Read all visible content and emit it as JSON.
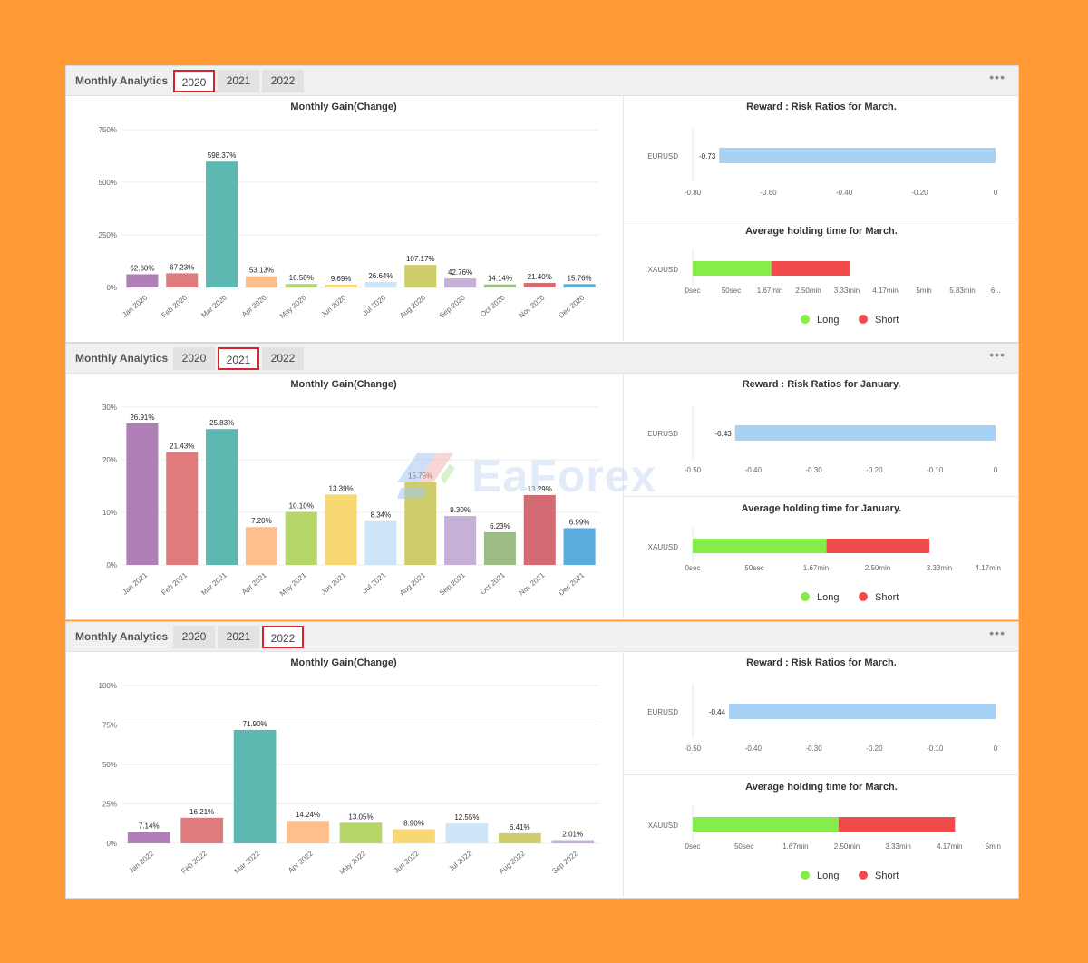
{
  "panels": [
    {
      "title": "Monthly Analytics",
      "tabs": [
        "2020",
        "2021",
        "2022"
      ],
      "active_tab": 0,
      "menu_icon": "more-dots-icon",
      "gain_chart": {
        "type": "bar",
        "title": "Monthly Gain(Change)",
        "categories": [
          "Jan 2020",
          "Feb 2020",
          "Mar 2020",
          "Apr 2020",
          "May 2020",
          "Jun 2020",
          "Jul 2020",
          "Aug 2020",
          "Sep 2020",
          "Oct 2020",
          "Nov 2020",
          "Dec 2020"
        ],
        "values": [
          62.6,
          67.23,
          598.37,
          53.13,
          16.5,
          9.69,
          26.64,
          107.17,
          42.76,
          14.14,
          21.4,
          15.76
        ],
        "labels": [
          "62.60%",
          "67.23%",
          "598.37%",
          "53.13%",
          "16.50%",
          "9.69%",
          "26.64%",
          "107.17%",
          "42.76%",
          "14.14%",
          "21.40%",
          "15.76%"
        ],
        "colors": [
          "#b07fb8",
          "#e07b7d",
          "#5cb8b1",
          "#ffbf8c",
          "#b7d66a",
          "#f7d873",
          "#cde5f7",
          "#cdcd6b",
          "#c5b0d6",
          "#9bbd84",
          "#d36c72",
          "#5aacdc"
        ],
        "ylim": [
          0,
          750
        ],
        "yticks": [
          "750%",
          "500%",
          "250%",
          "0%"
        ]
      },
      "rr_chart": {
        "type": "bar",
        "title": "Reward : Risk Ratios for March.",
        "category": "EURUSD",
        "value": -0.73,
        "label": "-0.73",
        "xlim": [
          -0.8,
          0
        ],
        "xticks": [
          "-0.80",
          "-0.60",
          "-0.40",
          "-0.20",
          "0"
        ]
      },
      "hold_chart": {
        "type": "bar",
        "title": "Average holding time for March.",
        "category": "XAUUSD",
        "long_frac": 0.255,
        "short_frac": 0.256,
        "xticks": [
          "0sec",
          "50sec",
          "1.67min",
          "2.50min",
          "3.33min",
          "4.17min",
          "5min",
          "5.83min",
          "6..."
        ],
        "legend": [
          "Long",
          "Short"
        ],
        "colors": {
          "long": "#86ec4a",
          "short": "#f14a4a"
        }
      }
    },
    {
      "title": "Monthly Analytics",
      "tabs": [
        "2020",
        "2021",
        "2022"
      ],
      "active_tab": 1,
      "menu_icon": "more-dots-icon",
      "gain_chart": {
        "type": "bar",
        "title": "Monthly Gain(Change)",
        "categories": [
          "Jan 2021",
          "Feb 2021",
          "Mar 2021",
          "Apr 2021",
          "May 2021",
          "Jun 2021",
          "Jul 2021",
          "Aug 2021",
          "Sep 2021",
          "Oct 2021",
          "Nov 2021",
          "Dec 2021"
        ],
        "values": [
          26.91,
          21.43,
          25.83,
          7.2,
          10.1,
          13.39,
          8.34,
          15.75,
          9.3,
          6.23,
          13.29,
          6.99
        ],
        "labels": [
          "26.91%",
          "21.43%",
          "25.83%",
          "7.20%",
          "10.10%",
          "13.39%",
          "8.34%",
          "15.75%",
          "9.30%",
          "6.23%",
          "13.29%",
          "6.99%"
        ],
        "colors": [
          "#b07fb8",
          "#e07b7d",
          "#5cb8b1",
          "#ffbf8c",
          "#b7d66a",
          "#f7d873",
          "#cde5f7",
          "#cdcd6b",
          "#c5b0d6",
          "#9bbd84",
          "#d36c72",
          "#5aacdc"
        ],
        "ylim": [
          0,
          30
        ],
        "yticks": [
          "30%",
          "20%",
          "10%",
          "0%"
        ]
      },
      "rr_chart": {
        "type": "bar",
        "title": "Reward : Risk Ratios for January.",
        "category": "EURUSD",
        "value": -0.43,
        "label": "-0.43",
        "xlim": [
          -0.5,
          0
        ],
        "xticks": [
          "-0.50",
          "-0.40",
          "-0.30",
          "-0.20",
          "-0.10",
          "0"
        ]
      },
      "hold_chart": {
        "type": "bar",
        "title": "Average holding time for January.",
        "category": "XAUUSD",
        "long_frac": 0.434,
        "short_frac": 0.334,
        "xticks": [
          "0sec",
          "50sec",
          "1.67min",
          "2.50min",
          "3.33min",
          "4.17min"
        ],
        "legend": [
          "Long",
          "Short"
        ],
        "colors": {
          "long": "#86ec4a",
          "short": "#f14a4a"
        }
      }
    },
    {
      "title": "Monthly Analytics",
      "tabs": [
        "2020",
        "2021",
        "2022"
      ],
      "active_tab": 2,
      "menu_icon": "more-dots-icon",
      "gain_chart": {
        "type": "bar",
        "title": "Monthly Gain(Change)",
        "categories": [
          "Jan 2022",
          "Feb 2022",
          "Mar 2022",
          "Apr 2022",
          "May 2022",
          "Jun 2022",
          "Jul 2022",
          "Aug 2022",
          "Sep 2022"
        ],
        "values": [
          7.14,
          16.21,
          71.9,
          14.24,
          13.05,
          8.9,
          12.55,
          6.41,
          2.01
        ],
        "labels": [
          "7.14%",
          "16.21%",
          "71.90%",
          "14.24%",
          "13.05%",
          "8.90%",
          "12.55%",
          "6.41%",
          "2.01%"
        ],
        "colors": [
          "#b07fb8",
          "#e07b7d",
          "#5cb8b1",
          "#ffbf8c",
          "#b7d66a",
          "#f7d873",
          "#cde5f7",
          "#cdcd6b",
          "#c5b0d6"
        ],
        "ylim": [
          0,
          100
        ],
        "yticks": [
          "100%",
          "75%",
          "50%",
          "25%",
          "0%"
        ]
      },
      "rr_chart": {
        "type": "bar",
        "title": "Reward : Risk Ratios for March.",
        "category": "EURUSD",
        "value": -0.44,
        "label": "-0.44",
        "xlim": [
          -0.5,
          0
        ],
        "xticks": [
          "-0.50",
          "-0.40",
          "-0.30",
          "-0.20",
          "-0.10",
          "0"
        ]
      },
      "hold_chart": {
        "type": "bar",
        "title": "Average holding time for March.",
        "category": "XAUUSD",
        "long_frac": 0.473,
        "short_frac": 0.378,
        "xticks": [
          "0sec",
          "50sec",
          "1.67min",
          "2.50min",
          "3.33min",
          "4.17min",
          "5min"
        ],
        "legend": [
          "Long",
          "Short"
        ],
        "colors": {
          "long": "#86ec4a",
          "short": "#f14a4a"
        }
      }
    }
  ],
  "watermark": "EaForex"
}
